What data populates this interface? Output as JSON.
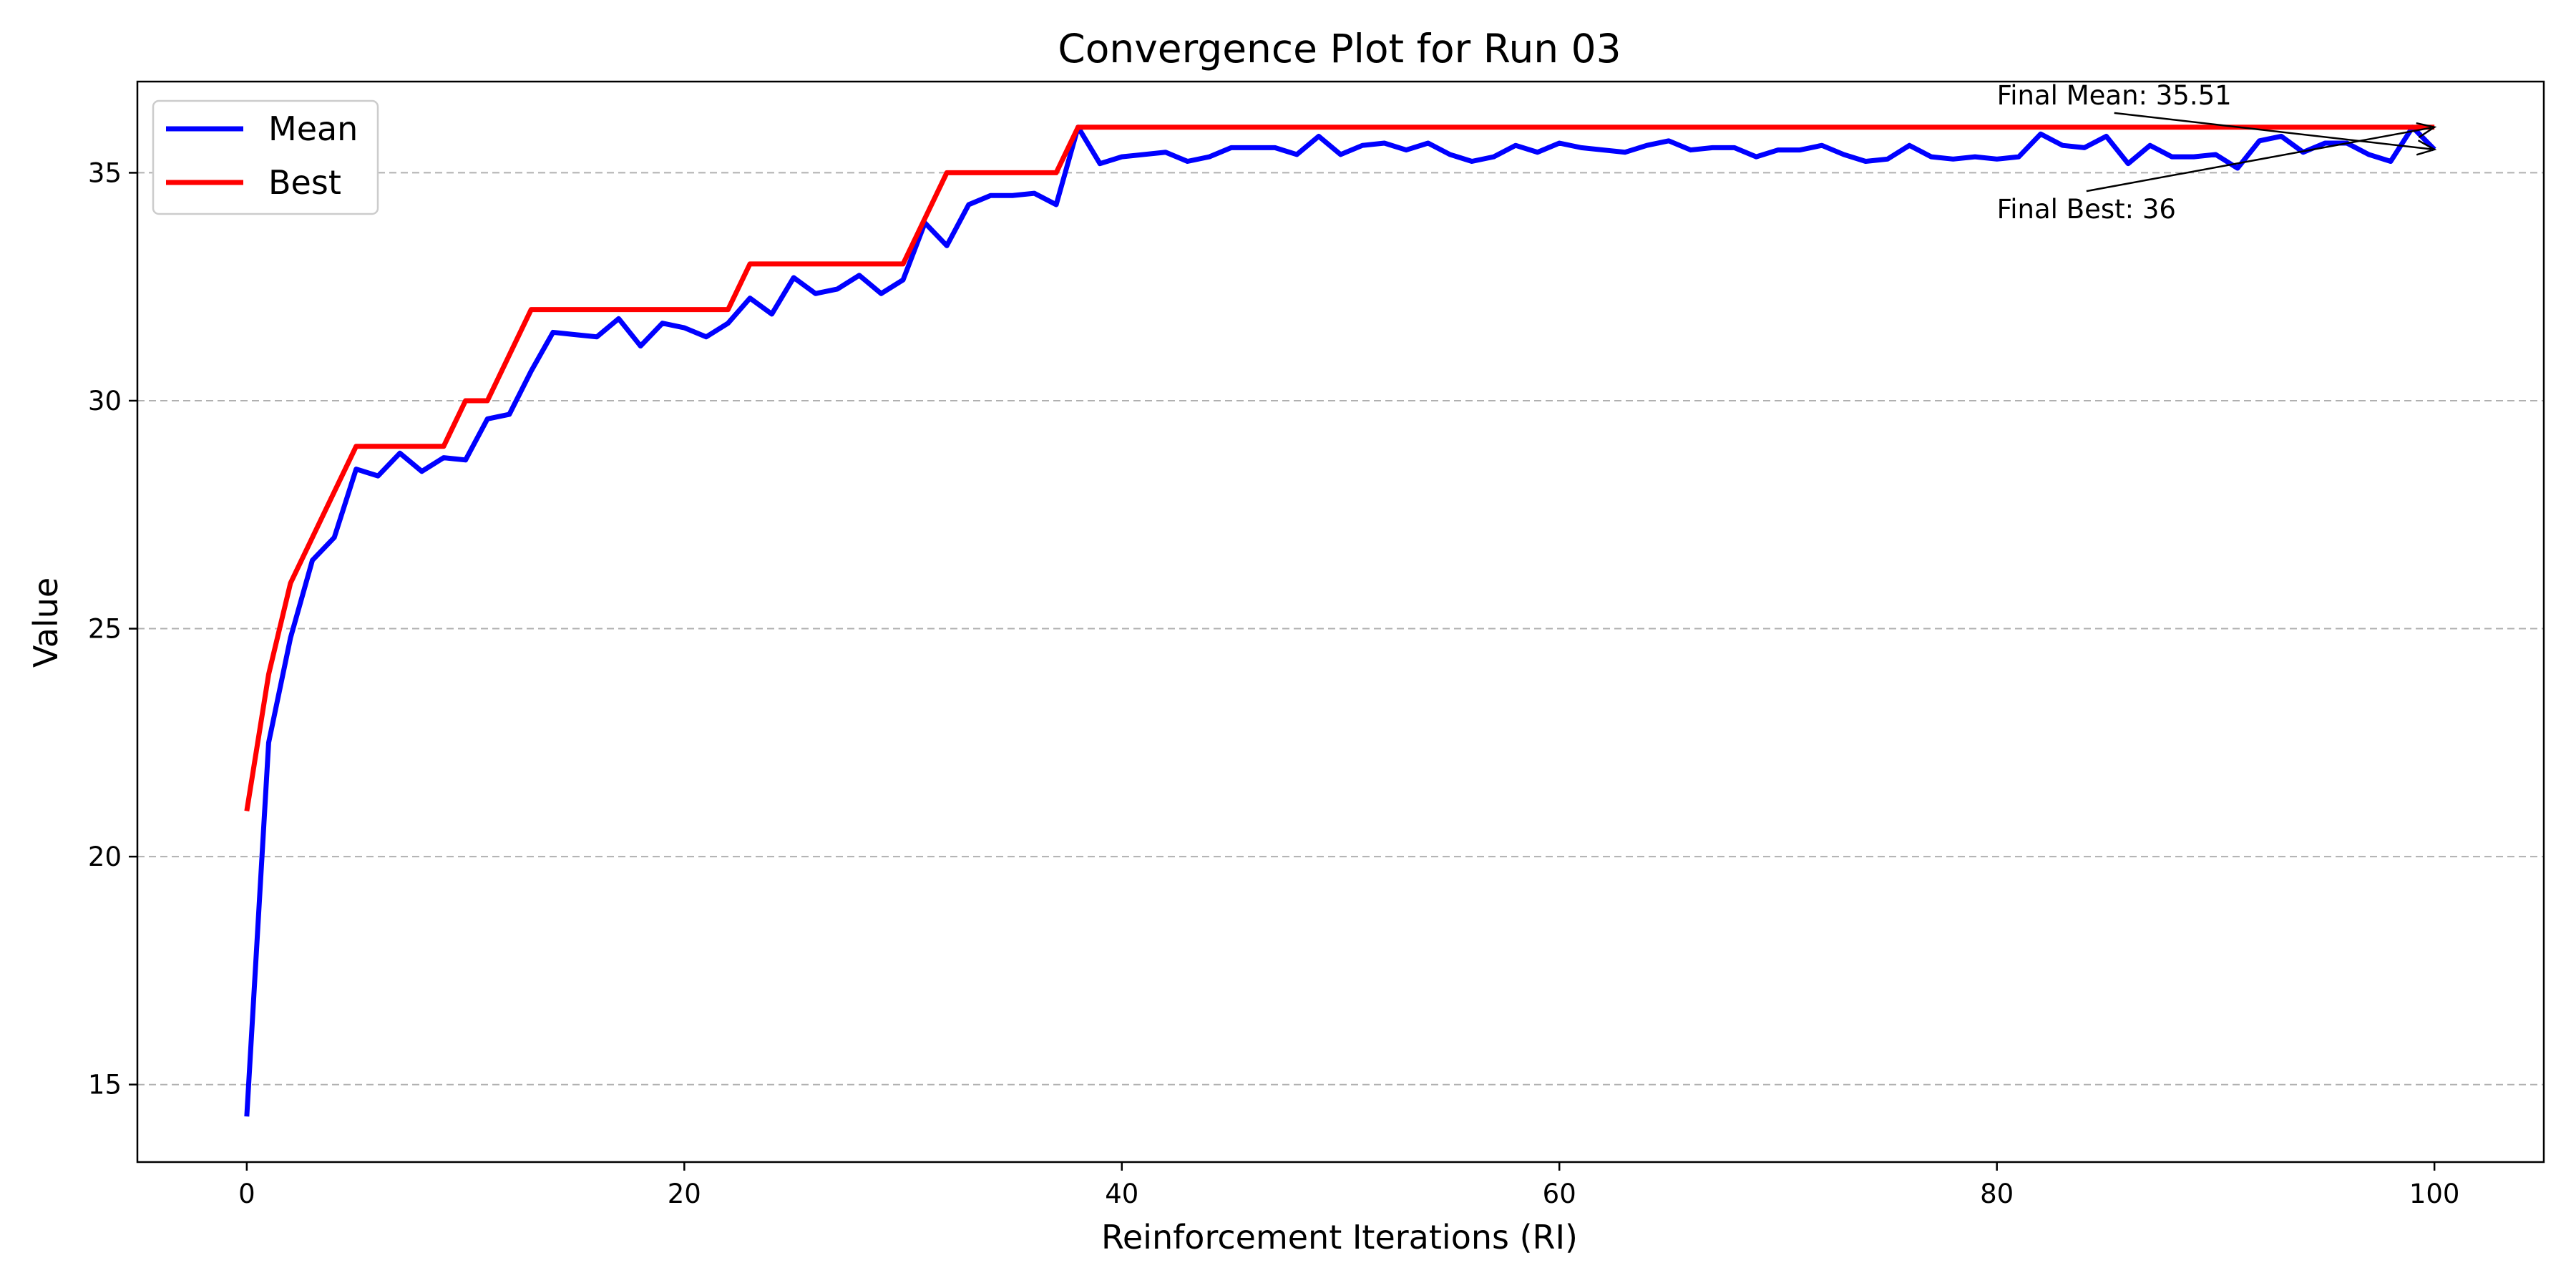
{
  "chart_data": {
    "type": "line",
    "title": "Convergence Plot for Run 03",
    "xlabel": "Reinforcement Iterations (RI)",
    "ylabel": "Value",
    "xlim": [
      -5,
      105
    ],
    "ylim": [
      13.3,
      37.0
    ],
    "xticks": [
      0,
      20,
      40,
      60,
      80,
      100
    ],
    "yticks": [
      15,
      20,
      25,
      30,
      35
    ],
    "grid": "horizontal-dashed",
    "legend_position": "top-left",
    "series": [
      {
        "name": "Mean",
        "color": "#0000ff",
        "x": [
          0,
          1,
          2,
          3,
          4,
          5,
          6,
          7,
          8,
          9,
          10,
          11,
          12,
          13,
          14,
          15,
          16,
          17,
          18,
          19,
          20,
          21,
          22,
          23,
          24,
          25,
          26,
          27,
          28,
          29,
          30,
          31,
          32,
          33,
          34,
          35,
          36,
          37,
          38,
          39,
          40,
          41,
          42,
          43,
          44,
          45,
          46,
          47,
          48,
          49,
          50,
          51,
          52,
          53,
          54,
          55,
          56,
          57,
          58,
          59,
          60,
          61,
          62,
          63,
          64,
          65,
          66,
          67,
          68,
          69,
          70,
          71,
          72,
          73,
          74,
          75,
          76,
          77,
          78,
          79,
          80,
          81,
          82,
          83,
          84,
          85,
          86,
          87,
          88,
          89,
          90,
          91,
          92,
          93,
          94,
          95,
          96,
          97,
          98,
          99,
          100
        ],
        "y": [
          14.3,
          22.5,
          24.8,
          26.5,
          27.0,
          28.5,
          28.35,
          28.85,
          28.45,
          28.75,
          28.7,
          29.6,
          29.7,
          30.65,
          31.5,
          31.45,
          31.4,
          31.8,
          31.2,
          31.7,
          31.6,
          31.4,
          31.7,
          32.25,
          31.9,
          32.7,
          32.35,
          32.45,
          32.75,
          32.35,
          32.65,
          33.9,
          33.4,
          34.3,
          34.5,
          34.5,
          34.55,
          34.3,
          36.0,
          35.2,
          35.35,
          35.4,
          35.45,
          35.25,
          35.35,
          35.55,
          35.55,
          35.55,
          35.4,
          35.8,
          35.4,
          35.6,
          35.65,
          35.5,
          35.65,
          35.4,
          35.25,
          35.35,
          35.6,
          35.45,
          35.65,
          35.55,
          35.5,
          35.45,
          35.6,
          35.7,
          35.5,
          35.55,
          35.55,
          35.35,
          35.5,
          35.5,
          35.6,
          35.4,
          35.25,
          35.3,
          35.6,
          35.35,
          35.3,
          35.35,
          35.3,
          35.35,
          35.85,
          35.6,
          35.55,
          35.8,
          35.2,
          35.6,
          35.35,
          35.35,
          35.4,
          35.1,
          35.7,
          35.8,
          35.45,
          35.65,
          35.65,
          35.4,
          35.25,
          36.0,
          35.51
        ]
      },
      {
        "name": "Best",
        "color": "#ff0000",
        "x": [
          0,
          1,
          2,
          3,
          4,
          5,
          6,
          7,
          8,
          9,
          10,
          11,
          12,
          13,
          14,
          15,
          16,
          17,
          18,
          19,
          20,
          21,
          22,
          23,
          24,
          25,
          26,
          27,
          28,
          29,
          30,
          31,
          32,
          33,
          34,
          35,
          36,
          37,
          38,
          39,
          40,
          41,
          42,
          43,
          44,
          45,
          46,
          47,
          48,
          49,
          50,
          51,
          52,
          53,
          54,
          55,
          56,
          57,
          58,
          59,
          60,
          61,
          62,
          63,
          64,
          65,
          66,
          67,
          68,
          69,
          70,
          71,
          72,
          73,
          74,
          75,
          76,
          77,
          78,
          79,
          80,
          81,
          82,
          83,
          84,
          85,
          86,
          87,
          88,
          89,
          90,
          91,
          92,
          93,
          94,
          95,
          96,
          97,
          98,
          99,
          100
        ],
        "y": [
          21,
          24,
          26,
          27,
          28,
          29,
          29,
          29,
          29,
          29,
          30,
          30,
          31,
          32,
          32,
          32,
          32,
          32,
          32,
          32,
          32,
          32,
          32,
          33,
          33,
          33,
          33,
          33,
          33,
          33,
          33,
          34,
          35,
          35,
          35,
          35,
          35,
          35,
          36,
          36,
          36,
          36,
          36,
          36,
          36,
          36,
          36,
          36,
          36,
          36,
          36,
          36,
          36,
          36,
          36,
          36,
          36,
          36,
          36,
          36,
          36,
          36,
          36,
          36,
          36,
          36,
          36,
          36,
          36,
          36,
          36,
          36,
          36,
          36,
          36,
          36,
          36,
          36,
          36,
          36,
          36,
          36,
          36,
          36,
          36,
          36,
          36,
          36,
          36,
          36,
          36,
          36,
          36,
          36,
          36,
          36,
          36,
          36,
          36,
          36,
          36
        ]
      }
    ],
    "annotations": [
      {
        "text": "Final Mean: 35.51",
        "xy": [
          100,
          35.51
        ],
        "xytext": [
          80,
          36.5
        ]
      },
      {
        "text": "Final Best: 36",
        "xy": [
          100,
          36
        ],
        "xytext": [
          80,
          34.0
        ]
      }
    ]
  }
}
